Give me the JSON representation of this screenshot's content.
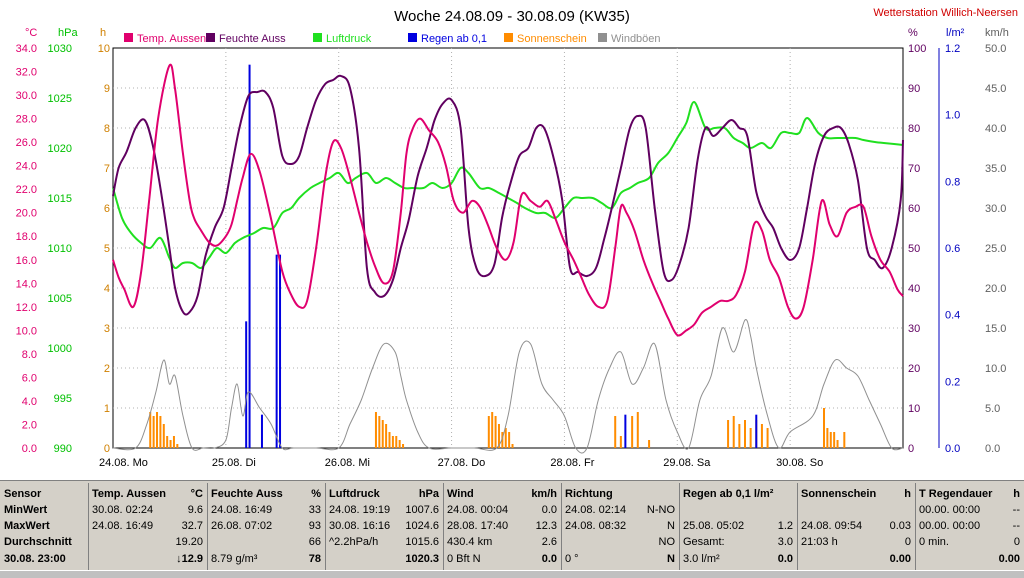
{
  "chart_data": {
    "type": "line",
    "title": "Woche 24.08.09 - 30.08.09 (KW35)",
    "station": "Wetterstation Willich-Neersen",
    "x_range_days": [
      0,
      7
    ],
    "x_ticks": [
      "24.08.  Mo",
      "25.08.  Di",
      "26.08.  Mi",
      "27.08.  Do",
      "28.08.  Fr",
      "29.08.  Sa",
      "30.08.  So"
    ],
    "axes": [
      {
        "id": "temp",
        "unit": "°C",
        "range": [
          0,
          34
        ],
        "ticks": [
          "0.0",
          "2.0",
          "4.0",
          "6.0",
          "8.0",
          "10.0",
          "12.0",
          "14.0",
          "16.0",
          "18.0",
          "20.0",
          "22.0",
          "24.0",
          "26.0",
          "28.0",
          "30.0",
          "32.0",
          "34.0"
        ],
        "color": "#e0006e"
      },
      {
        "id": "pressure",
        "unit": "hPa",
        "range": [
          990,
          1030
        ],
        "ticks": [
          "990",
          "995",
          "1000",
          "1005",
          "1010",
          "1015",
          "1020",
          "1025",
          "1030"
        ],
        "color": "#00c000"
      },
      {
        "id": "sun",
        "unit": "h",
        "range": [
          0,
          10
        ],
        "ticks": [
          "0",
          "1",
          "2",
          "3",
          "4",
          "5",
          "6",
          "7",
          "8",
          "9",
          "10"
        ],
        "color": "#d08000"
      },
      {
        "id": "humidity",
        "unit": "%",
        "range": [
          0,
          100
        ],
        "ticks": [
          "0",
          "10",
          "20",
          "30",
          "40",
          "50",
          "60",
          "70",
          "80",
          "90",
          "100"
        ],
        "color": "#600060"
      },
      {
        "id": "rain",
        "unit": "l/m²",
        "range": [
          0,
          1.2
        ],
        "ticks": [
          "0.0",
          "0.2",
          "0.4",
          "0.6",
          "0.8",
          "1.0",
          "1.2"
        ],
        "color": "#0000c0"
      },
      {
        "id": "wind",
        "unit": "km/h",
        "range": [
          0,
          50
        ],
        "ticks": [
          "0.0",
          "5.0",
          "10.0",
          "15.0",
          "20.0",
          "25.0",
          "30.0",
          "35.0",
          "40.0",
          "45.0",
          "50.0"
        ],
        "color": "#606060"
      }
    ],
    "legend": [
      {
        "name": "Temp. Aussen",
        "color": "#e0006e"
      },
      {
        "name": "Feuchte Auss",
        "color": "#600060"
      },
      {
        "name": "Luftdruck",
        "color": "#20e020"
      },
      {
        "name": "Regen ab 0,1",
        "color": "#0000e0"
      },
      {
        "name": "Sonnenschein",
        "color": "#ff8c00"
      },
      {
        "name": "Windböen",
        "color": "#909090"
      }
    ],
    "series": [
      {
        "name": "Temp. Aussen",
        "axis": "temp",
        "color": "#e0006e",
        "x": [
          0,
          0.05,
          0.1,
          0.18,
          0.25,
          0.32,
          0.4,
          0.5,
          0.55,
          0.62,
          0.68,
          0.72,
          0.78,
          0.85,
          0.92,
          1.0,
          1.05,
          1.1,
          1.15,
          1.22,
          1.3,
          1.4,
          1.5,
          1.58,
          1.65,
          1.72,
          1.8,
          1.88,
          1.95,
          2.02,
          2.1,
          2.18,
          2.25,
          2.32,
          2.4,
          2.48,
          2.55,
          2.6,
          2.65,
          2.72,
          2.8,
          2.88,
          2.95,
          3.02,
          3.1,
          3.18,
          3.25,
          3.32,
          3.4,
          3.48,
          3.55,
          3.62,
          3.7,
          3.78,
          3.85,
          3.92,
          4.0,
          4.08,
          4.15,
          4.22,
          4.3,
          4.38,
          4.45,
          4.5,
          4.55,
          4.62,
          4.7,
          4.78,
          4.85,
          4.92,
          5.0,
          5.08,
          5.15,
          5.22,
          5.3,
          5.38,
          5.45,
          5.52,
          5.6,
          5.68,
          5.75,
          5.82,
          5.9,
          5.98,
          6.05,
          6.12,
          6.2,
          6.28,
          6.35,
          6.42,
          6.5,
          6.58,
          6.65,
          6.72,
          6.8,
          6.88,
          6.95,
          7.0
        ],
        "values": [
          16.0,
          14.5,
          13.5,
          12.0,
          15.0,
          21.0,
          28.0,
          32.5,
          30.5,
          25.0,
          21.0,
          19.5,
          18.5,
          17.5,
          17.2,
          18.0,
          19.0,
          21.0,
          23.0,
          25.0,
          23.5,
          19.5,
          15.0,
          13.0,
          12.0,
          12.5,
          17.0,
          23.0,
          26.0,
          25.5,
          23.0,
          20.0,
          17.5,
          15.5,
          14.0,
          15.0,
          20.0,
          25.0,
          27.0,
          28.0,
          27.0,
          26.0,
          24.0,
          21.0,
          20.0,
          21.0,
          20.5,
          19.0,
          17.0,
          16.0,
          17.5,
          21.5,
          21.0,
          20.5,
          21.0,
          19.5,
          17.5,
          16.0,
          14.5,
          13.0,
          12.0,
          12.5,
          17.0,
          20.5,
          20.0,
          18.5,
          16.0,
          14.0,
          12.5,
          11.0,
          9.6,
          10.0,
          10.5,
          11.5,
          12.0,
          12.5,
          12.5,
          13.0,
          15.0,
          19.0,
          18.5,
          16.0,
          14.5,
          12.0,
          11.0,
          12.0,
          16.0,
          21.0,
          19.0,
          18.0,
          20.0,
          20.5,
          20.5,
          18.0,
          16.0,
          15.0,
          13.5,
          12.9
        ]
      },
      {
        "name": "Feuchte Auss",
        "axis": "humidity",
        "color": "#600060",
        "x": [
          0,
          0.05,
          0.12,
          0.2,
          0.28,
          0.35,
          0.42,
          0.5,
          0.55,
          0.62,
          0.68,
          0.75,
          0.82,
          0.9,
          0.98,
          1.05,
          1.12,
          1.2,
          1.28,
          1.35,
          1.42,
          1.5,
          1.58,
          1.65,
          1.72,
          1.8,
          1.88,
          1.95,
          2.02,
          2.1,
          2.18,
          2.25,
          2.32,
          2.4,
          2.48,
          2.55,
          2.62,
          2.7,
          2.78,
          2.85,
          2.92,
          3.0,
          3.08,
          3.15,
          3.22,
          3.3,
          3.38,
          3.45,
          3.52,
          3.6,
          3.68,
          3.75,
          3.82,
          3.9,
          3.98,
          4.05,
          4.12,
          4.2,
          4.28,
          4.35,
          4.42,
          4.5,
          4.58,
          4.65,
          4.72,
          4.8,
          4.88,
          4.95,
          5.02,
          5.1,
          5.18,
          5.25,
          5.32,
          5.4,
          5.48,
          5.55,
          5.62,
          5.7,
          5.78,
          5.85,
          5.92,
          6.0,
          6.08,
          6.15,
          6.22,
          6.3,
          6.38,
          6.45,
          6.52,
          6.6,
          6.68,
          6.75,
          6.82,
          6.9,
          6.98,
          7.0
        ],
        "values": [
          63,
          70,
          74,
          80,
          82,
          76,
          65,
          50,
          40,
          34,
          34,
          38,
          48,
          55,
          60,
          70,
          80,
          88,
          89,
          89,
          85,
          73,
          71,
          73,
          80,
          87,
          91,
          92,
          93,
          90,
          75,
          45,
          39,
          38,
          42,
          50,
          57,
          68,
          75,
          82,
          86,
          87,
          80,
          55,
          45,
          43,
          46,
          58,
          66,
          73,
          75,
          80,
          80,
          73,
          62,
          45,
          44,
          43,
          45,
          52,
          60,
          70,
          80,
          83,
          80,
          60,
          44,
          42,
          46,
          55,
          72,
          80,
          78,
          80,
          82,
          80,
          78,
          64,
          58,
          55,
          50,
          47,
          50,
          60,
          71,
          78,
          80,
          80,
          76,
          67,
          50,
          47,
          45,
          50,
          62,
          77
        ]
      },
      {
        "name": "Luftdruck",
        "axis": "pressure",
        "color": "#20e020",
        "x": [
          0,
          0.08,
          0.16,
          0.25,
          0.33,
          0.42,
          0.5,
          0.55,
          0.62,
          0.7,
          0.78,
          0.85,
          0.92,
          1.0,
          1.08,
          1.15,
          1.25,
          1.33,
          1.42,
          1.5,
          1.58,
          1.65,
          1.75,
          1.83,
          1.92,
          2.0,
          2.08,
          2.15,
          2.25,
          2.33,
          2.42,
          2.5,
          2.58,
          2.65,
          2.75,
          2.83,
          2.92,
          3.0,
          3.08,
          3.15,
          3.25,
          3.33,
          3.42,
          3.5,
          3.58,
          3.65,
          3.75,
          3.83,
          3.92,
          4.0,
          4.08,
          4.15,
          4.25,
          4.33,
          4.42,
          4.5,
          4.58,
          4.65,
          4.75,
          4.83,
          4.92,
          5.0,
          5.08,
          5.15,
          5.25,
          5.33,
          5.42,
          5.5,
          5.58,
          5.65,
          5.75,
          5.83,
          5.92,
          6.0,
          6.08,
          6.15,
          6.25,
          6.33,
          6.42,
          6.5,
          6.58,
          6.65,
          6.75,
          6.83,
          6.92,
          7.0
        ],
        "values": [
          1016.0,
          1013.0,
          1011.5,
          1010.5,
          1010.0,
          1011.0,
          1009.0,
          1008.0,
          1008.5,
          1008.5,
          1008.0,
          1009.0,
          1010.0,
          1009.5,
          1010.5,
          1011.0,
          1011.5,
          1012.0,
          1012.0,
          1013.5,
          1014.0,
          1015.0,
          1016.0,
          1016.5,
          1017.0,
          1017.5,
          1016.5,
          1017.0,
          1017.5,
          1016.5,
          1017.0,
          1016.5,
          1016.0,
          1016.0,
          1016.0,
          1016.5,
          1016.0,
          1016.5,
          1018.0,
          1017.5,
          1016.0,
          1016.0,
          1015.5,
          1015.0,
          1014.5,
          1014.0,
          1013.5,
          1013.5,
          1013.0,
          1014.0,
          1015.0,
          1015.0,
          1015.0,
          1014.5,
          1014.0,
          1015.5,
          1016.0,
          1016.5,
          1017.0,
          1018.5,
          1019.5,
          1021.0,
          1022.5,
          1024.6,
          1022.0,
          1022.0,
          1022.0,
          1021.0,
          1020.5,
          1020.0,
          1020.5,
          1020.0,
          1021.5,
          1021.5,
          1021.5,
          1023.0,
          1021.5,
          1021.0,
          1021.0,
          1021.0,
          1021.0,
          1020.8,
          1020.6,
          1020.5,
          1020.4,
          1020.3
        ]
      },
      {
        "name": "Windböen",
        "axis": "wind",
        "color": "#909090",
        "x": [
          0,
          0.2,
          0.3,
          0.38,
          0.45,
          0.5,
          0.55,
          0.62,
          0.7,
          0.8,
          0.9,
          1.0,
          1.05,
          1.1,
          1.15,
          1.2,
          1.3,
          1.4,
          1.5,
          1.6,
          1.8,
          2.0,
          2.1,
          2.2,
          2.3,
          2.4,
          2.5,
          2.55,
          2.6,
          2.7,
          2.8,
          3.0,
          3.2,
          3.4,
          3.5,
          3.6,
          3.7,
          3.8,
          3.9,
          4.0,
          4.1,
          4.2,
          4.3,
          4.4,
          4.5,
          4.6,
          4.7,
          4.8,
          4.9,
          5.0,
          5.1,
          5.2,
          5.3,
          5.4,
          5.5,
          5.6,
          5.65,
          5.7,
          5.8,
          5.9,
          6.0,
          6.2,
          6.3,
          6.4,
          6.5,
          6.6,
          6.7,
          6.8,
          6.9,
          7.0
        ],
        "values": [
          0,
          0,
          3,
          7,
          11,
          8,
          9,
          4,
          0,
          0,
          0,
          1,
          5,
          8,
          4,
          7,
          5,
          3,
          0,
          0,
          0,
          0,
          3,
          6,
          10,
          13,
          12,
          9,
          6,
          2,
          0,
          0,
          0,
          0,
          4,
          12,
          13,
          8,
          6,
          4,
          0,
          0,
          6,
          10,
          12,
          8,
          10,
          13,
          6,
          2,
          0,
          6,
          9,
          15,
          12,
          16,
          14,
          10,
          4,
          0,
          2,
          4,
          8,
          11,
          10,
          9,
          6,
          3,
          0,
          0
        ]
      }
    ],
    "bars": [
      {
        "name": "Sonnenschein",
        "axis": "sun",
        "color": "#ff8c00",
        "x": [
          0.33,
          0.36,
          0.39,
          0.42,
          0.45,
          0.48,
          0.51,
          0.54,
          0.57,
          2.33,
          2.36,
          2.39,
          2.42,
          2.45,
          2.48,
          2.51,
          2.54,
          2.57,
          3.33,
          3.36,
          3.39,
          3.42,
          3.45,
          3.48,
          3.51,
          3.54,
          4.45,
          4.5,
          4.6,
          4.65,
          4.75,
          5.45,
          5.5,
          5.55,
          5.6,
          5.65,
          5.7,
          5.75,
          5.8,
          6.3,
          6.33,
          6.36,
          6.39,
          6.42,
          6.48
        ],
        "values": [
          0.9,
          0.8,
          0.9,
          0.8,
          0.6,
          0.3,
          0.2,
          0.3,
          0.1,
          0.9,
          0.8,
          0.7,
          0.6,
          0.4,
          0.3,
          0.3,
          0.2,
          0.1,
          0.8,
          0.9,
          0.8,
          0.6,
          0.4,
          0.5,
          0.4,
          0.1,
          0.8,
          0.3,
          0.8,
          0.9,
          0.2,
          0.7,
          0.8,
          0.6,
          0.7,
          0.5,
          0.7,
          0.6,
          0.5,
          1.0,
          0.5,
          0.4,
          0.4,
          0.2,
          0.4
        ]
      },
      {
        "name": "Regen ab 0,1",
        "axis": "rain",
        "color": "#0000e0",
        "x": [
          1.18,
          1.21,
          1.32,
          1.45,
          1.48,
          4.54,
          5.7
        ],
        "values": [
          0.38,
          1.15,
          0.1,
          0.58,
          0.58,
          0.1,
          0.1
        ]
      }
    ]
  },
  "table": {
    "row_labels": [
      "Sensor",
      "MinWert",
      "MaxWert",
      "Durchschnitt",
      "30.08.  23:00"
    ],
    "columns": [
      {
        "header": "Temp. Aussen",
        "unit": "°C",
        "rows": [
          [
            "30.08.  02:24",
            "9.6"
          ],
          [
            "24.08.  16:49",
            "32.7"
          ],
          [
            "",
            "19.20"
          ],
          [
            "",
            "↓12.9"
          ]
        ]
      },
      {
        "header": "Feuchte Auss",
        "unit": "%",
        "rows": [
          [
            "24.08.  16:49",
            "33"
          ],
          [
            "26.08.  07:02",
            "93"
          ],
          [
            "",
            "66"
          ],
          [
            "8.79 g/m³",
            "78"
          ]
        ]
      },
      {
        "header": "Luftdruck",
        "unit": "hPa",
        "rows": [
          [
            "24.08.  19:19",
            "1007.6"
          ],
          [
            "30.08.  16:16",
            "1024.6"
          ],
          [
            "^2.2hPa/h",
            "1015.6"
          ],
          [
            "",
            "1020.3"
          ]
        ]
      },
      {
        "header": "Wind",
        "unit": "km/h",
        "rows": [
          [
            "24.08.  00:04",
            "0.0"
          ],
          [
            "28.08.  17:40",
            "12.3"
          ],
          [
            "430.4 km",
            "2.6"
          ],
          [
            "0 Bft N",
            "0.0"
          ]
        ]
      },
      {
        "header": "Richtung",
        "unit": "",
        "rows": [
          [
            "24.08.  02:14",
            "N-NO"
          ],
          [
            "24.08.  08:32",
            "N"
          ],
          [
            "",
            "NO"
          ],
          [
            "0 °",
            "N"
          ]
        ]
      },
      {
        "header": "Regen ab 0,1  l/m²",
        "unit": "",
        "rows": [
          [
            "",
            ""
          ],
          [
            "25.08.  05:02",
            "1.2"
          ],
          [
            "Gesamt:",
            "3.0"
          ],
          [
            "3.0 l/m²",
            "0.0"
          ]
        ]
      },
      {
        "header": "Sonnenschein",
        "unit": "h",
        "rows": [
          [
            "",
            ""
          ],
          [
            "24.08.  09:54",
            "0.03"
          ],
          [
            "21:03 h",
            "0"
          ],
          [
            "",
            "0.00"
          ]
        ]
      },
      {
        "header": "T Regendauer",
        "unit": "h",
        "rows": [
          [
            "00.00.  00:00",
            "--"
          ],
          [
            "00.00.  00:00",
            "--"
          ],
          [
            "0 min.",
            "0"
          ],
          [
            "",
            "0.00"
          ]
        ]
      }
    ]
  }
}
